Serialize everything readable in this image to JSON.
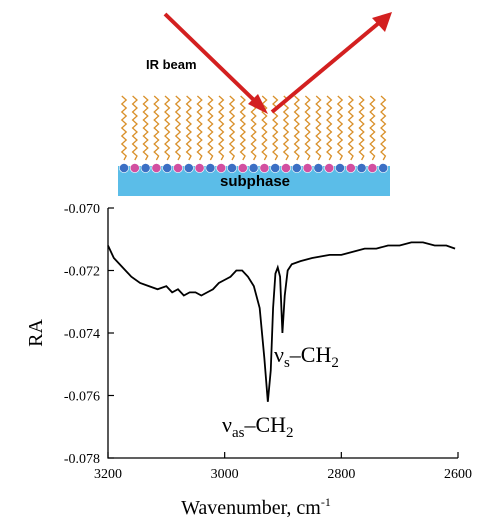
{
  "diagram": {
    "beam_label": "IR beam",
    "subphase_label": "subphase"
  },
  "chart_data": {
    "type": "line",
    "color": "#000000",
    "y_label": "RA",
    "x_label": [
      {
        "text": "Wavenumber, cm"
      },
      {
        "text": "-1",
        "sup": true
      }
    ],
    "annotations": [
      {
        "parts": [
          {
            "text": "ν"
          },
          {
            "text": "as",
            "sub": true
          },
          {
            "text": "–CH"
          },
          {
            "text": "2",
            "sub": true
          }
        ]
      },
      {
        "parts": [
          {
            "text": "ν"
          },
          {
            "text": "s",
            "sub": true
          },
          {
            "text": "–CH"
          },
          {
            "text": "2",
            "sub": true
          }
        ]
      }
    ],
    "xlim": [
      3200,
      2600
    ],
    "xticks": [
      3200,
      3000,
      2800,
      2600
    ],
    "ylim": [
      -0.078,
      -0.07
    ],
    "yticks": [
      {
        "value": -0.078,
        "label": "-0.078"
      },
      {
        "value": -0.076,
        "label": "-0.076"
      },
      {
        "value": -0.074,
        "label": "-0.074"
      },
      {
        "value": -0.072,
        "label": "-0.072"
      },
      {
        "value": -0.07,
        "label": "-0.070"
      }
    ],
    "x": [
      3200,
      3190,
      3175,
      3160,
      3145,
      3130,
      3115,
      3100,
      3090,
      3080,
      3070,
      3060,
      3050,
      3040,
      3030,
      3020,
      3010,
      3000,
      2990,
      2980,
      2970,
      2960,
      2950,
      2940,
      2932,
      2926,
      2921,
      2917,
      2913,
      2909,
      2905,
      2901,
      2897,
      2892,
      2885,
      2870,
      2850,
      2820,
      2800,
      2780,
      2760,
      2740,
      2720,
      2700,
      2680,
      2660,
      2640,
      2620,
      2605
    ],
    "values": [
      -0.0712,
      -0.0716,
      -0.0719,
      -0.0722,
      -0.0724,
      -0.0725,
      -0.0726,
      -0.0725,
      -0.0727,
      -0.0726,
      -0.0728,
      -0.0727,
      -0.0727,
      -0.0728,
      -0.0727,
      -0.0726,
      -0.0724,
      -0.0723,
      -0.0722,
      -0.072,
      -0.072,
      -0.0722,
      -0.0725,
      -0.0732,
      -0.0748,
      -0.0762,
      -0.0752,
      -0.0732,
      -0.0721,
      -0.0719,
      -0.0722,
      -0.074,
      -0.0728,
      -0.072,
      -0.0718,
      -0.0717,
      -0.0716,
      -0.0715,
      -0.0715,
      -0.0714,
      -0.0713,
      -0.0713,
      -0.0712,
      -0.0712,
      -0.0711,
      -0.0711,
      -0.0712,
      -0.0712,
      -0.0713
    ]
  }
}
